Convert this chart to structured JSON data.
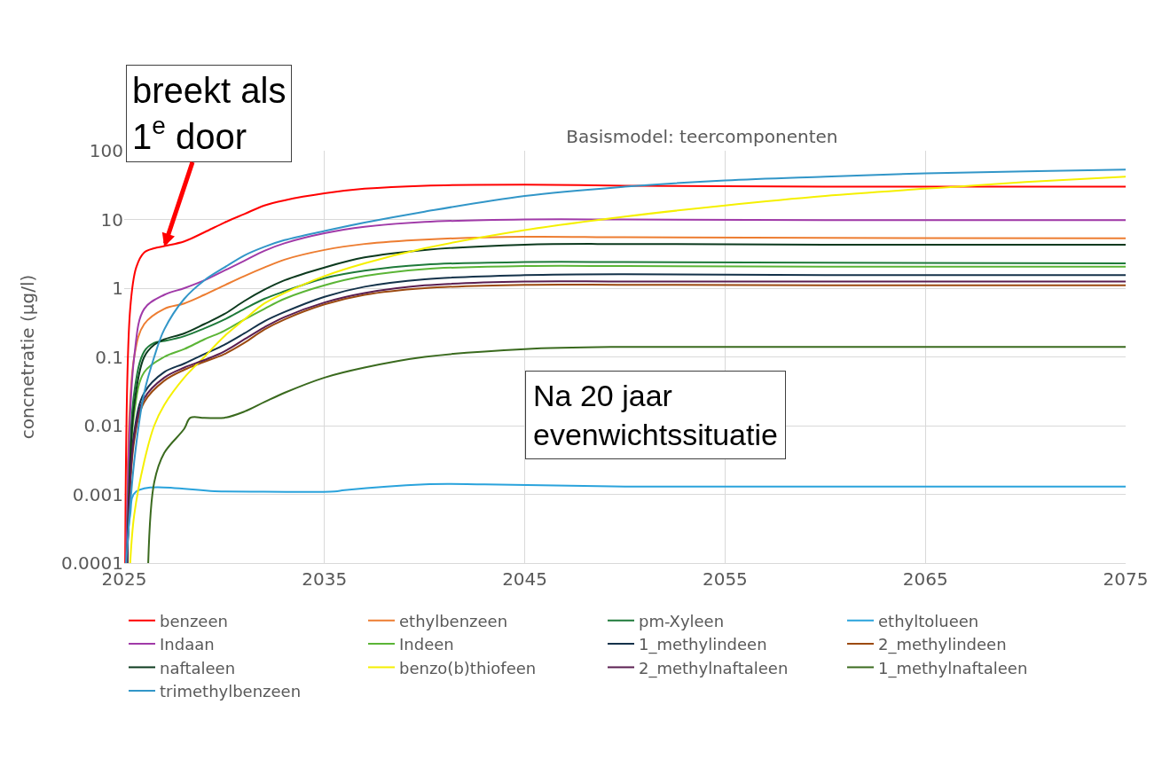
{
  "chart_data": {
    "type": "line",
    "title": "Basismodel: teercomponenten",
    "ylabel": "concnetratie (µg/l)",
    "log": "y",
    "grid": true,
    "legend": "bottom",
    "marker": "none",
    "line_style": "solid",
    "xlim": [
      2025,
      2075
    ],
    "xticks": [
      2025,
      2035,
      2045,
      2055,
      2065,
      2075
    ],
    "ylim": [
      0.0001,
      100
    ],
    "yticks": [
      0.0001,
      0.001,
      0.01,
      0.1,
      1,
      10,
      100
    ],
    "annotations": [
      {
        "text": "breekt als 1$^{e}$ door",
        "x": 2027,
        "y": 4
      },
      "Na 20 jaar evenwichtssituatie"
    ],
    "series": [
      {
        "name": "benzeen",
        "color": "#ff0000",
        "x": [
          2025.05,
          2025.3,
          2025.6,
          2026,
          2026.5,
          2027,
          2028,
          2029,
          2030,
          2031,
          2032,
          2033,
          2035,
          2037,
          2040,
          2045,
          2050,
          2055,
          2060,
          2065,
          2070,
          2075
        ],
        "values": [
          0.0001,
          0.5,
          2,
          3.3,
          3.8,
          4.1,
          4.8,
          6.5,
          9,
          12,
          16,
          19,
          24,
          28,
          31,
          32,
          31,
          30.5,
          30,
          30,
          30,
          30
        ]
      },
      {
        "name": "ethylbenzeen",
        "color": "#ed7d31",
        "x": [
          2025.1,
          2025.5,
          2026,
          2027,
          2028,
          2029,
          2030,
          2031,
          2032,
          2033,
          2035,
          2037,
          2040,
          2045,
          2050,
          2060,
          2075
        ],
        "values": [
          0.0001,
          0.1,
          0.3,
          0.5,
          0.6,
          0.8,
          1.1,
          1.5,
          2,
          2.6,
          3.6,
          4.4,
          5.1,
          5.6,
          5.5,
          5.4,
          5.3
        ]
      },
      {
        "name": "pm-Xyleen",
        "color": "#1e7a3a",
        "x": [
          2025.15,
          2025.5,
          2026,
          2026.5,
          2027,
          2028,
          2029,
          2030,
          2031,
          2032,
          2033,
          2035,
          2037,
          2040,
          2045,
          2050,
          2060,
          2075
        ],
        "values": [
          0.0001,
          0.03,
          0.12,
          0.16,
          0.17,
          0.2,
          0.26,
          0.35,
          0.5,
          0.7,
          0.9,
          1.4,
          1.8,
          2.2,
          2.4,
          2.4,
          2.35,
          2.3
        ]
      },
      {
        "name": "ethyltolueen",
        "color": "#2aa3dc",
        "x": [
          2025.1,
          2025.3,
          2025.6,
          2030,
          2035.5,
          2036,
          2040,
          2043,
          2050,
          2060,
          2075
        ],
        "values": [
          0.0001,
          0.0005,
          0.0011,
          0.0011,
          0.0011,
          0.00115,
          0.0014,
          0.0014,
          0.0013,
          0.0013,
          0.0013
        ]
      },
      {
        "name": "Indaan",
        "color": "#a03aa8",
        "x": [
          2025.1,
          2025.5,
          2026,
          2027,
          2028,
          2029,
          2030,
          2031,
          2032,
          2033,
          2035,
          2037,
          2040,
          2045,
          2050,
          2060,
          2075
        ],
        "values": [
          0.0001,
          0.1,
          0.5,
          0.8,
          1.0,
          1.3,
          1.8,
          2.5,
          3.5,
          4.5,
          6.3,
          7.8,
          9.2,
          10,
          10,
          9.8,
          9.8
        ]
      },
      {
        "name": "Indeen",
        "color": "#5bb536",
        "x": [
          2025.15,
          2025.5,
          2026,
          2027,
          2028,
          2029,
          2030,
          2031,
          2032,
          2033,
          2035,
          2037,
          2040,
          2045,
          2050,
          2060,
          2075
        ],
        "values": [
          0.0001,
          0.015,
          0.06,
          0.1,
          0.13,
          0.18,
          0.24,
          0.35,
          0.5,
          0.7,
          1.1,
          1.5,
          1.9,
          2.1,
          2.1,
          2.05,
          2.05
        ]
      },
      {
        "name": "1_methylindeen",
        "color": "#14324a",
        "x": [
          2025.15,
          2025.5,
          2026,
          2027,
          2028,
          2029,
          2030,
          2031,
          2032,
          2033,
          2035,
          2037,
          2040,
          2045,
          2050,
          2060,
          2075
        ],
        "values": [
          0.0001,
          0.008,
          0.03,
          0.06,
          0.08,
          0.11,
          0.15,
          0.22,
          0.33,
          0.45,
          0.75,
          1.05,
          1.35,
          1.55,
          1.6,
          1.55,
          1.55
        ]
      },
      {
        "name": "2_methylindeen",
        "color": "#9c4a10",
        "x": [
          2025.15,
          2025.5,
          2026,
          2027,
          2028,
          2029,
          2030,
          2031,
          2032,
          2033,
          2035,
          2037,
          2040,
          2045,
          2050,
          2060,
          2075
        ],
        "values": [
          0.0001,
          0.006,
          0.022,
          0.045,
          0.065,
          0.085,
          0.11,
          0.16,
          0.25,
          0.35,
          0.58,
          0.8,
          1.0,
          1.12,
          1.12,
          1.1,
          1.1
        ]
      },
      {
        "name": "naftaleen",
        "color": "#0c3a1e",
        "x": [
          2025.15,
          2025.5,
          2026,
          2026.5,
          2027,
          2028,
          2029,
          2030,
          2031,
          2032,
          2033,
          2035,
          2037,
          2040,
          2045,
          2050,
          2060,
          2075
        ],
        "values": [
          0.0001,
          0.02,
          0.1,
          0.15,
          0.18,
          0.22,
          0.3,
          0.42,
          0.65,
          0.95,
          1.3,
          2,
          2.8,
          3.6,
          4.3,
          4.4,
          4.3,
          4.3
        ]
      },
      {
        "name": "benzo(b)thiofeen",
        "color": "#f5f000",
        "x": [
          2025.3,
          2025.5,
          2026,
          2026.5,
          2027,
          2028,
          2029,
          2030,
          2031,
          2032,
          2033,
          2035,
          2037,
          2040,
          2045,
          2050,
          2055,
          2060,
          2065,
          2070,
          2075
        ],
        "values": [
          0.0001,
          0.0005,
          0.003,
          0.01,
          0.02,
          0.05,
          0.1,
          0.2,
          0.35,
          0.6,
          0.85,
          1.5,
          2.3,
          3.8,
          7,
          11,
          16,
          22,
          28,
          35,
          42
        ]
      },
      {
        "name": "2_methylnaftaleen",
        "color": "#5a1e50",
        "x": [
          2025.15,
          2025.5,
          2026,
          2027,
          2028,
          2029,
          2030,
          2031,
          2032,
          2033,
          2035,
          2037,
          2040,
          2045,
          2050,
          2060,
          2075
        ],
        "values": [
          0.0001,
          0.007,
          0.025,
          0.05,
          0.07,
          0.09,
          0.12,
          0.18,
          0.27,
          0.38,
          0.62,
          0.85,
          1.1,
          1.25,
          1.25,
          1.25,
          1.25
        ]
      },
      {
        "name": "1_methylnaftaleen",
        "color": "#3a6a1e",
        "x": [
          2026.2,
          2026.5,
          2027,
          2028,
          2028.3,
          2029,
          2030,
          2031,
          2032,
          2033,
          2035,
          2037,
          2040,
          2045,
          2050,
          2060,
          2075
        ],
        "values": [
          0.0001,
          0.0015,
          0.004,
          0.009,
          0.013,
          0.013,
          0.013,
          0.016,
          0.022,
          0.03,
          0.05,
          0.07,
          0.1,
          0.13,
          0.14,
          0.14,
          0.14
        ]
      },
      {
        "name": "trimethylbenzeen",
        "color": "#3296c8",
        "x": [
          2025.1,
          2025.5,
          2026,
          2026.5,
          2027,
          2028,
          2029,
          2030,
          2031,
          2032,
          2033,
          2035,
          2037,
          2040,
          2045,
          2050,
          2055,
          2060,
          2065,
          2070,
          2075
        ],
        "values": [
          0.0001,
          0.003,
          0.03,
          0.1,
          0.25,
          0.7,
          1.3,
          2,
          3,
          4,
          5,
          6.8,
          9,
          13,
          22,
          30,
          37,
          42,
          47,
          50,
          53
        ]
      }
    ]
  }
}
